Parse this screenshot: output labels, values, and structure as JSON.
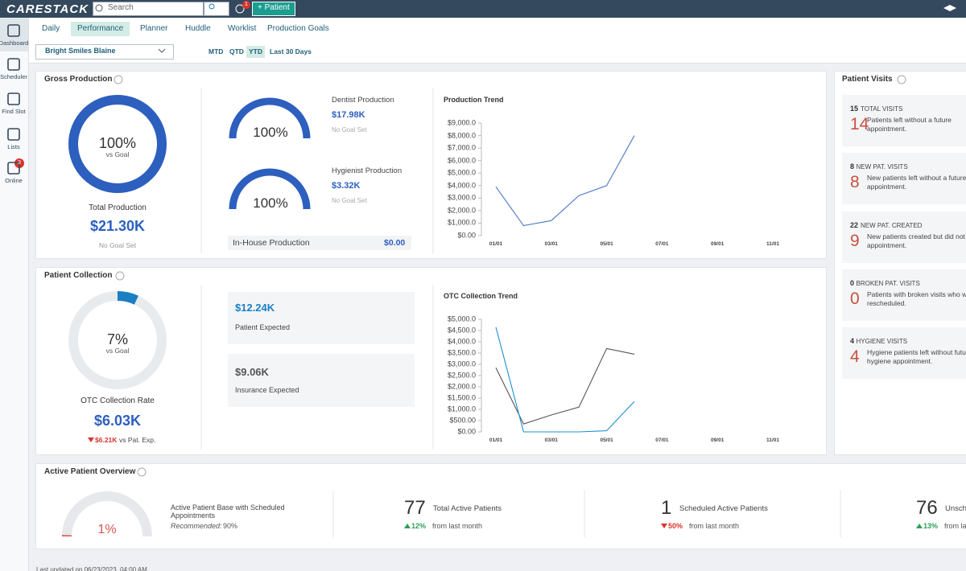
{
  "topbar": {
    "logo": "CARESTACK",
    "search": "Search",
    "notification_count": "1",
    "new_patient": "+ Patient"
  },
  "sidebar": [
    {
      "label": "Dashboard"
    },
    {
      "label": "Scheduler"
    },
    {
      "label": "Find Slot"
    },
    {
      "label": "Lists"
    },
    {
      "label": "Online",
      "badge": "3"
    }
  ],
  "tabs": {
    "items": [
      "Daily",
      "Performance",
      "Planner",
      "Huddle",
      "Worklist",
      "Production Goals"
    ],
    "active": 1
  },
  "filters": {
    "location": "Bright Smiles Blaine",
    "periods": [
      "MTD",
      "QTD",
      "YTD",
      "Last 30 Days"
    ],
    "active": 2
  },
  "gross_production": {
    "title": "Gross Production",
    "total": {
      "percent": {
        "value": 100,
        "label": "100%"
      },
      "caption": "vs Goal",
      "label": "Total Production",
      "amount": "$21.30K",
      "goal": "No Goal Set"
    },
    "dentist": {
      "percent": {
        "value": 100,
        "label": "100%"
      },
      "label": "Dentist Production",
      "amount": "$17.98K",
      "goal": "No Goal Set"
    },
    "hygienist": {
      "percent": {
        "value": 100,
        "label": "100%"
      },
      "label": "Hygienist Production",
      "amount": "$3.32K",
      "goal": "No Goal Set"
    },
    "in_house": {
      "label": "In-House Production",
      "amount": "$0.00"
    },
    "trend": {
      "type": "line",
      "title": "Production Trend",
      "categories": [
        "01/01",
        null,
        "03/01",
        null,
        "05/01",
        null,
        "07/01",
        null,
        "09/01",
        null,
        "11/01",
        null
      ],
      "series": [
        {
          "color": "#4a78c8",
          "values": [
            3900,
            800,
            1200,
            3200,
            4000,
            8000,
            null,
            null,
            null,
            null,
            null,
            null
          ]
        }
      ],
      "ylim": [
        0,
        9000
      ],
      "yticks": [
        {
          "value": 0,
          "label": "$0.00"
        },
        {
          "value": 1000,
          "label": "$1,000.0"
        },
        {
          "value": 2000,
          "label": "$2,000.0"
        },
        {
          "value": 3000,
          "label": "$3,000.0"
        },
        {
          "value": 4000,
          "label": "$4,000.0"
        },
        {
          "value": 5000,
          "label": "$5,000.0"
        },
        {
          "value": 6000,
          "label": "$6,000.0"
        },
        {
          "value": 7000,
          "label": "$7,000.0"
        },
        {
          "value": 8000,
          "label": "$8,000.0"
        },
        {
          "value": 9000,
          "label": "$9,000.0"
        }
      ]
    }
  },
  "patient_collection": {
    "title": "Patient Collection",
    "rate": {
      "percent": {
        "value": 7,
        "label": "7%"
      },
      "caption": "vs Goal",
      "label": "OTC Collection Rate",
      "amount": "$6.03K"
    },
    "exp_diff": {
      "amount": "$6.21K",
      "label": "vs Pat. Exp.",
      "direction": "down"
    },
    "patient_expected": {
      "amount": "$12.24K",
      "label": "Patient Expected"
    },
    "insurance_expected": {
      "amount": "$9.06K",
      "label": "Insurance Expected"
    },
    "trend": {
      "type": "line",
      "title": "OTC Collection Trend",
      "categories": [
        "01/01",
        null,
        "03/01",
        null,
        "05/01",
        null,
        "07/01",
        null,
        "09/01",
        null,
        "11/01",
        null
      ],
      "series": [
        {
          "color": "#555555",
          "values": [
            2850,
            350,
            750,
            1100,
            3700,
            3450,
            null,
            null,
            null,
            null,
            null,
            null
          ]
        },
        {
          "color": "#1e8fd0",
          "values": [
            4650,
            0,
            0,
            0,
            50,
            1350,
            null,
            null,
            null,
            null,
            null,
            null
          ]
        }
      ],
      "ylim": [
        0,
        5000
      ],
      "yticks": [
        {
          "value": 0,
          "label": "$0.00"
        },
        {
          "value": 500,
          "label": "$500.00"
        },
        {
          "value": 1000,
          "label": "$1,000.0"
        },
        {
          "value": 1500,
          "label": "$1,500.0"
        },
        {
          "value": 2000,
          "label": "$2,000.0"
        },
        {
          "value": 2500,
          "label": "$2,500.0"
        },
        {
          "value": 3000,
          "label": "$3,000.0"
        },
        {
          "value": 3500,
          "label": "$3,500.0"
        },
        {
          "value": 4000,
          "label": "$4,000.0"
        },
        {
          "value": 4500,
          "label": "$4,500.0"
        },
        {
          "value": 5000,
          "label": "$5,000.0"
        }
      ]
    }
  },
  "patient_visits": {
    "title": "Patient Visits",
    "items": [
      {
        "count": "15",
        "label": "TOTAL VISITS",
        "number": "14",
        "lines": [
          "Patients left without a future",
          "appointment."
        ]
      },
      {
        "count": "8",
        "label": "NEW PAT. VISITS",
        "number": "8",
        "lines": [
          "New patients left without a future",
          "appointment."
        ]
      },
      {
        "count": "22",
        "label": "NEW PAT. CREATED",
        "number": "9",
        "lines": [
          "New patients created but did not",
          "appointment."
        ]
      },
      {
        "count": "0",
        "label": "BROKEN PAT. VISITS",
        "number": "0",
        "lines": [
          "Patients with broken visits who w",
          "rescheduled."
        ]
      },
      {
        "count": "4",
        "label": "HYGIENE VISITS",
        "number": "4",
        "lines": [
          "Hygiene patients left without futu",
          "hygiene appointment."
        ]
      }
    ]
  },
  "active_patients": {
    "title": "Active Patient Overview",
    "base": {
      "percent": {
        "value": 1,
        "label": "1%"
      },
      "label": "Active Patient Base with Scheduled Appointments",
      "recommended_label": "Recommended:",
      "recommended": "90%"
    },
    "stats": [
      {
        "number": "77",
        "label": "Total Active Patients",
        "change": "12%",
        "direction": "up",
        "suffix": "from last month"
      },
      {
        "number": "1",
        "label": "Scheduled Active Patients",
        "change": "50%",
        "direction": "down",
        "suffix": "from last month"
      },
      {
        "number": "76",
        "label": "Unsche",
        "change": "13%",
        "direction": "up",
        "suffix": "from la"
      }
    ]
  },
  "footer": "Last updated on 06/23/2023, 04:00 AM"
}
